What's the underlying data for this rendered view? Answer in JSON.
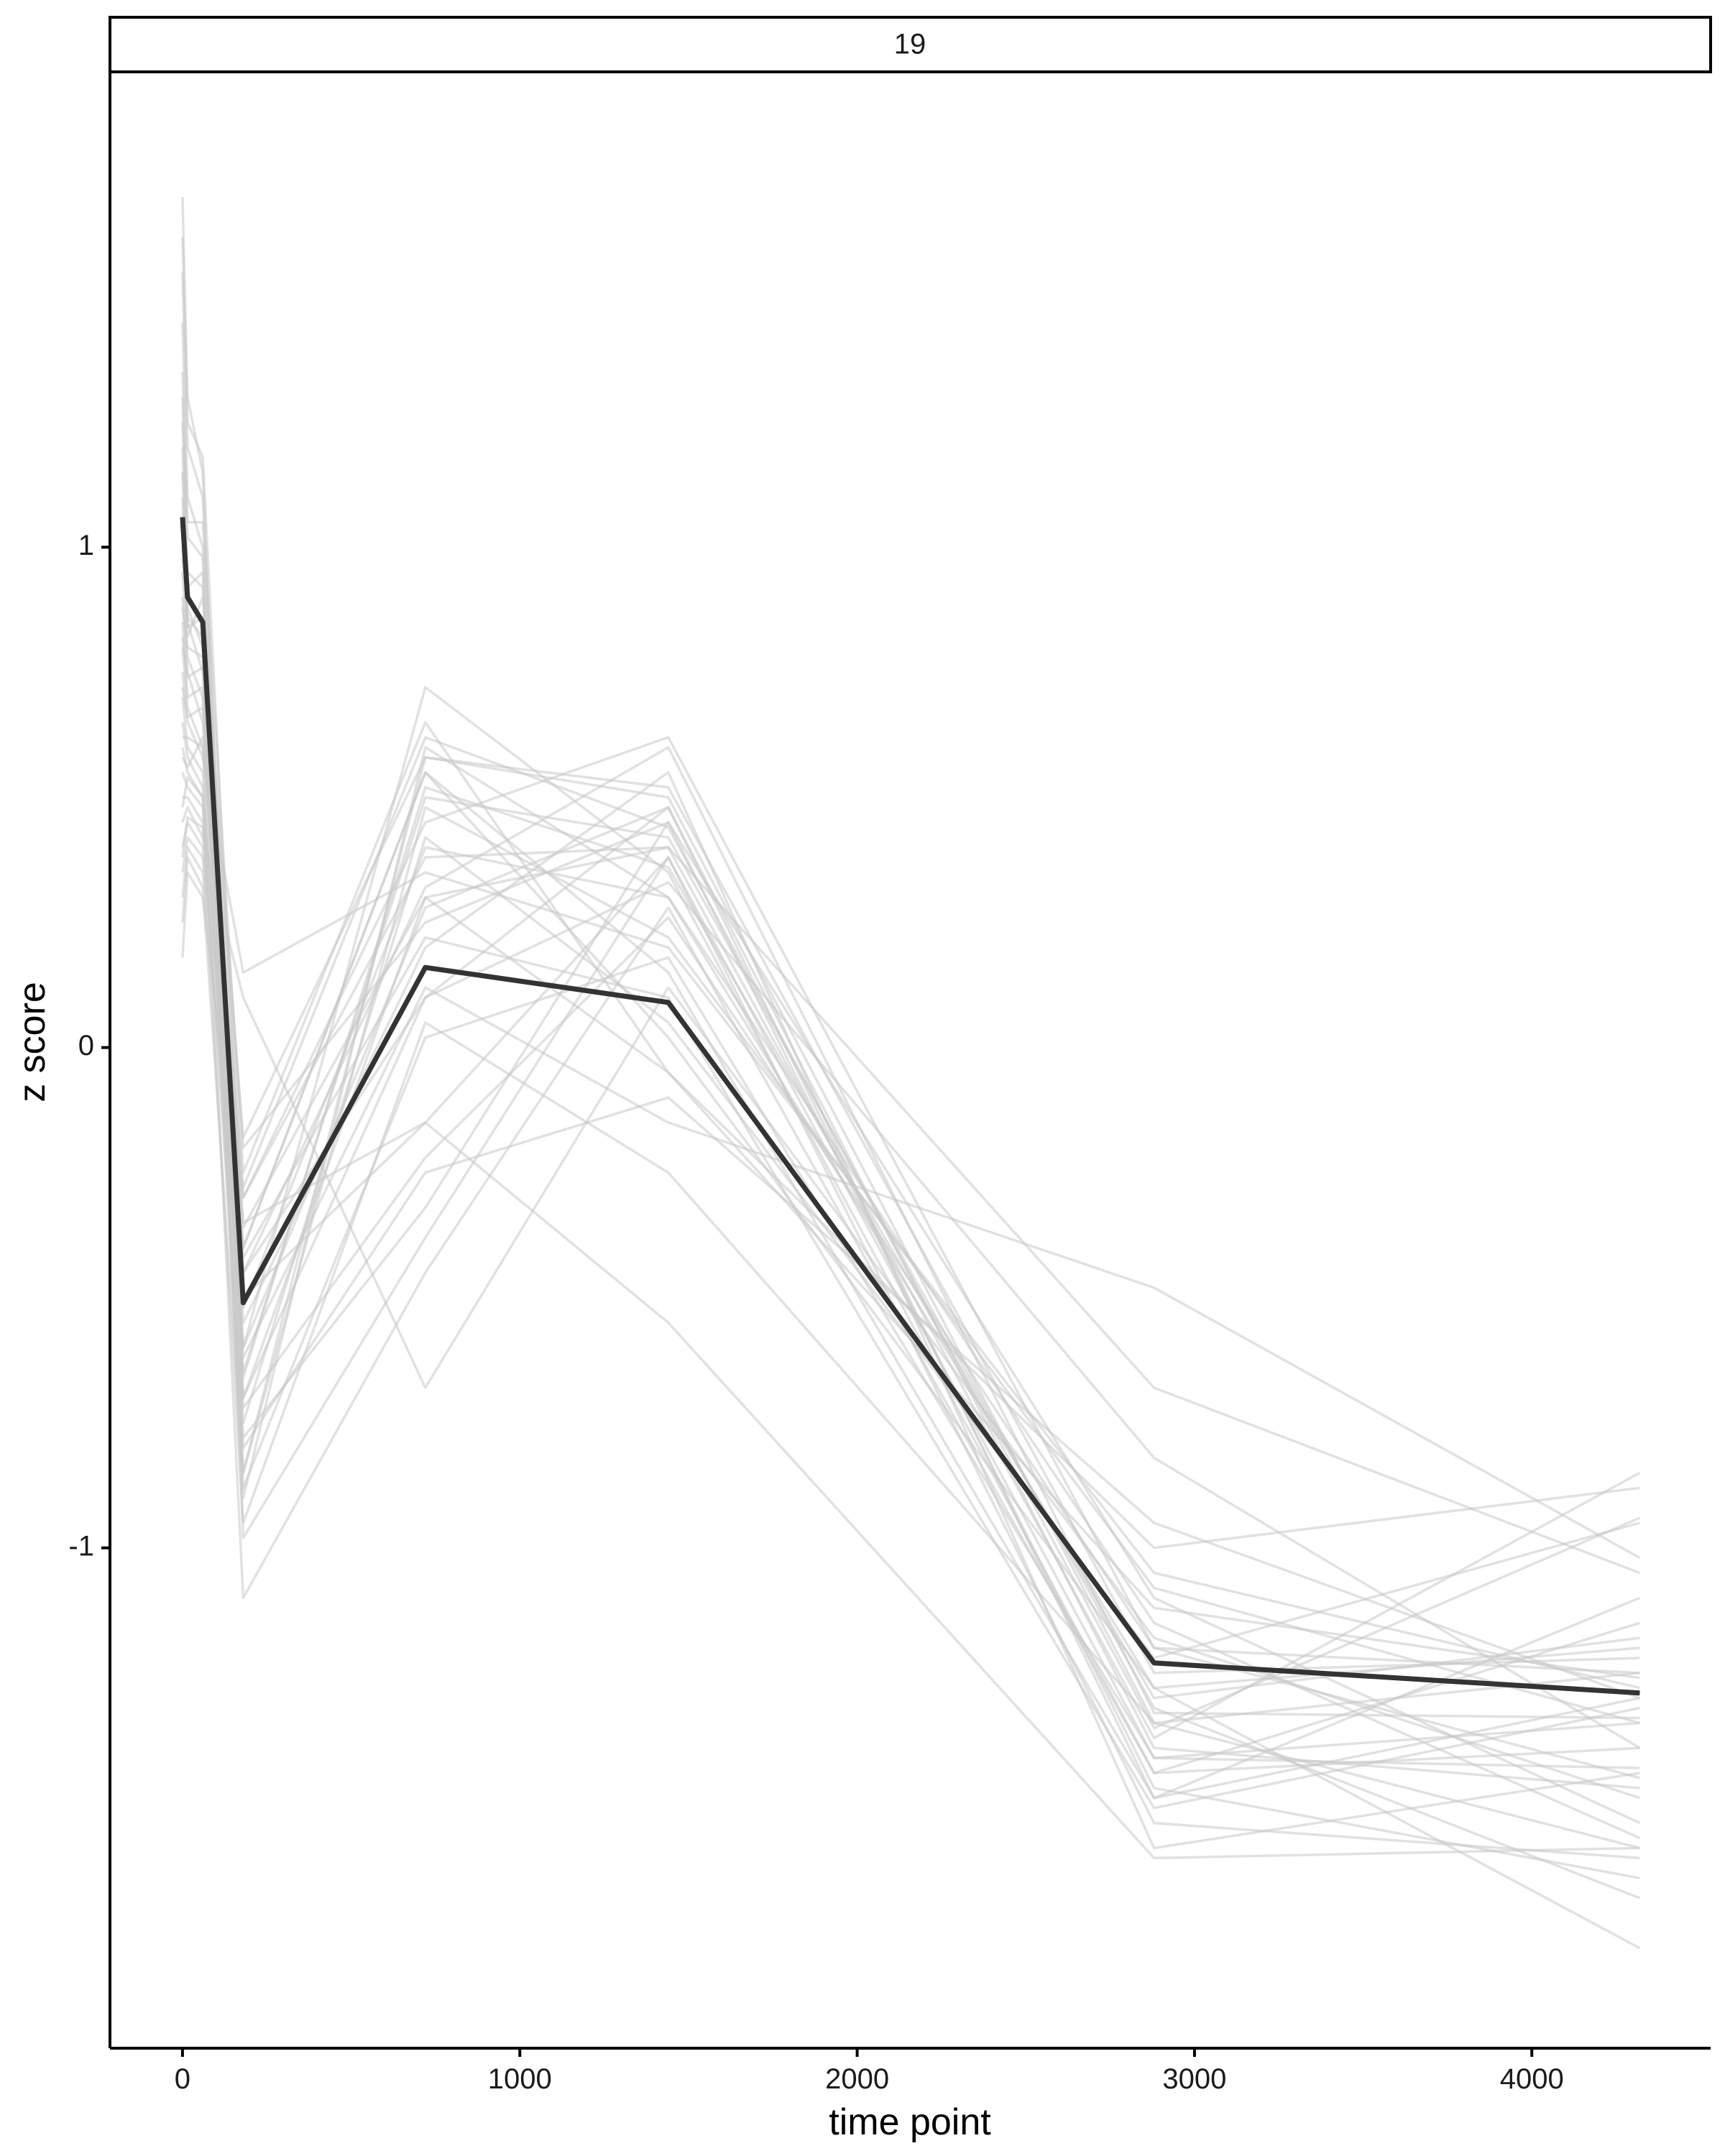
{
  "chart_data": {
    "type": "line",
    "facet_label": "19",
    "xlabel": "time point",
    "ylabel": "z score",
    "xlim": [
      -215,
      4530
    ],
    "ylim": [
      -2.0,
      1.95
    ],
    "x_ticks": [
      0,
      1000,
      2000,
      3000,
      4000
    ],
    "x_tick_labels": [
      "0",
      "1000",
      "2000",
      "3000",
      "4000"
    ],
    "y_ticks": [
      -1,
      0,
      1
    ],
    "y_tick_labels": [
      "-1",
      "0",
      "1"
    ],
    "grid": false,
    "x": [
      0,
      15,
      60,
      180,
      720,
      1440,
      2880,
      4320
    ],
    "summary_series": {
      "values": [
        1.06,
        0.9,
        0.85,
        -0.51,
        0.16,
        0.09,
        -1.23,
        -1.29
      ],
      "color": "#333333"
    },
    "member_series_color": "#c8c8c8",
    "member_series": [
      [
        1.7,
        1.3,
        1.15,
        -0.85,
        0.58,
        0.5,
        -1.35,
        -1.6
      ],
      [
        1.45,
        1.1,
        1.0,
        -0.6,
        0.72,
        0.35,
        -1.45,
        -1.4
      ],
      [
        1.3,
        0.95,
        0.92,
        -0.3,
        0.45,
        0.62,
        -1.2,
        -1.25
      ],
      [
        1.2,
        0.88,
        0.8,
        -0.7,
        0.3,
        0.4,
        -1.38,
        -0.85
      ],
      [
        1.1,
        0.85,
        0.75,
        -0.4,
        0.55,
        0.15,
        -1.5,
        -1.3
      ],
      [
        1.05,
        0.82,
        0.9,
        -0.2,
        0.25,
        0.45,
        -1.1,
        -1.55
      ],
      [
        0.95,
        0.78,
        0.7,
        -0.9,
        0.6,
        0.3,
        -1.28,
        -1.2
      ],
      [
        0.9,
        0.75,
        0.65,
        -0.55,
        0.2,
        0.55,
        -1.6,
        -1.45
      ],
      [
        0.85,
        0.7,
        0.72,
        -0.75,
        0.42,
        0.05,
        -1.22,
        -0.95
      ],
      [
        0.8,
        0.68,
        0.6,
        -0.35,
        -0.15,
        0.38,
        -1.42,
        -1.35
      ],
      [
        0.75,
        0.65,
        0.58,
        0.15,
        0.35,
        0.2,
        -1.05,
        -1.28
      ],
      [
        0.7,
        0.6,
        0.55,
        -0.65,
        0.5,
        0.42,
        -1.32,
        -1.7
      ],
      [
        0.65,
        0.58,
        0.52,
        -1.1,
        -0.45,
        0.28,
        -1.45,
        -1.15
      ],
      [
        0.6,
        0.55,
        0.5,
        -0.45,
        0.1,
        0.33,
        -0.82,
        -1.4
      ],
      [
        0.55,
        0.52,
        0.48,
        -0.8,
        -0.25,
        -0.1,
        -0.95,
        -1.3
      ],
      [
        0.5,
        0.5,
        0.45,
        -0.6,
        0.28,
        0.48,
        -1.5,
        -1.1
      ],
      [
        0.45,
        0.48,
        0.42,
        0.1,
        -0.68,
        0.12,
        -1.18,
        -1.5
      ],
      [
        0.4,
        0.45,
        0.4,
        -0.95,
        0.05,
        -0.25,
        -1.35,
        -1.25
      ],
      [
        0.35,
        0.42,
        0.38,
        -0.3,
        0.38,
        0.4,
        -0.68,
        -1.05
      ],
      [
        0.3,
        0.4,
        0.35,
        -0.5,
        -0.15,
        -0.55,
        -1.62,
        -1.6
      ],
      [
        0.25,
        0.38,
        0.32,
        -0.85,
        0.48,
        0.22,
        -1.08,
        -1.35
      ],
      [
        0.18,
        0.35,
        0.3,
        -0.4,
        0.55,
        0.02,
        -1.28,
        -1.8
      ],
      [
        1.55,
        1.2,
        1.1,
        -0.7,
        0.1,
        0.48,
        -1.4,
        -1.48
      ],
      [
        1.35,
        1.05,
        1.05,
        -0.25,
        0.65,
        -0.05,
        -1.0,
        -0.88
      ],
      [
        1.15,
        0.92,
        0.95,
        -0.98,
        -0.38,
        0.38,
        -1.55,
        -1.62
      ],
      [
        1.0,
        0.86,
        0.82,
        -0.18,
        0.58,
        0.52,
        -1.25,
        -1.22
      ],
      [
        0.88,
        0.8,
        0.78,
        -0.62,
        0.12,
        -0.15,
        -0.48,
        -1.02
      ],
      [
        0.72,
        0.66,
        0.68,
        -0.45,
        0.32,
        0.6,
        -1.33,
        -1.34
      ],
      [
        0.62,
        0.62,
        0.6,
        -0.78,
        -0.32,
        0.45,
        -1.48,
        -1.66
      ],
      [
        0.48,
        0.54,
        0.5,
        -0.52,
        0.4,
        0.3,
        -1.15,
        -1.58
      ],
      [
        1.62,
        1.25,
        1.18,
        -0.42,
        0.22,
        0.1,
        -1.52,
        -1.32
      ],
      [
        1.25,
        1.02,
        0.98,
        -0.66,
        0.52,
        0.36,
        -1.3,
        -1.18
      ],
      [
        0.98,
        0.84,
        0.86,
        -0.36,
        0.3,
        -0.05,
        -1.12,
        -1.26
      ],
      [
        0.82,
        0.74,
        0.76,
        -0.88,
        0.02,
        0.18,
        -1.42,
        -1.44
      ],
      [
        0.58,
        0.56,
        0.62,
        -0.28,
        0.62,
        0.44,
        -1.36,
        -0.94
      ],
      [
        0.38,
        0.46,
        0.44,
        -0.72,
        -0.22,
        0.26,
        -1.2,
        -1.46
      ]
    ]
  }
}
